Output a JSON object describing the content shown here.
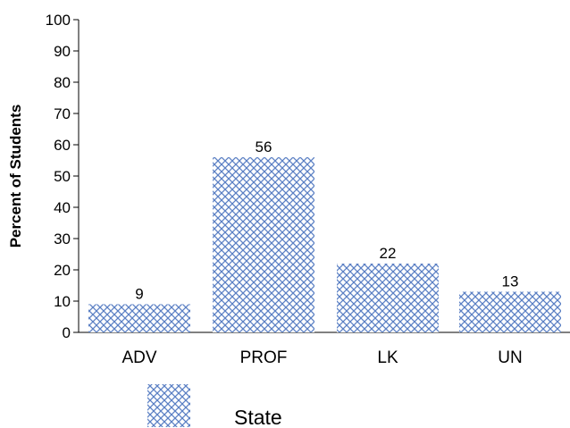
{
  "chart_data": {
    "type": "bar",
    "categories": [
      "ADV",
      "PROF",
      "LK",
      "UN"
    ],
    "series": [
      {
        "name": "State",
        "values": [
          9,
          56,
          22,
          13
        ]
      }
    ],
    "data_labels": [
      "9",
      "56",
      "22",
      "13"
    ],
    "ylabel": "Percent of Students",
    "xlabel": "",
    "title": "",
    "ylim": [
      0,
      100
    ],
    "yticks": [
      0,
      10,
      20,
      30,
      40,
      50,
      60,
      70,
      80,
      90,
      100
    ],
    "legend_position": "bottom",
    "grid": false,
    "bar_color": "#5a7fc4"
  }
}
